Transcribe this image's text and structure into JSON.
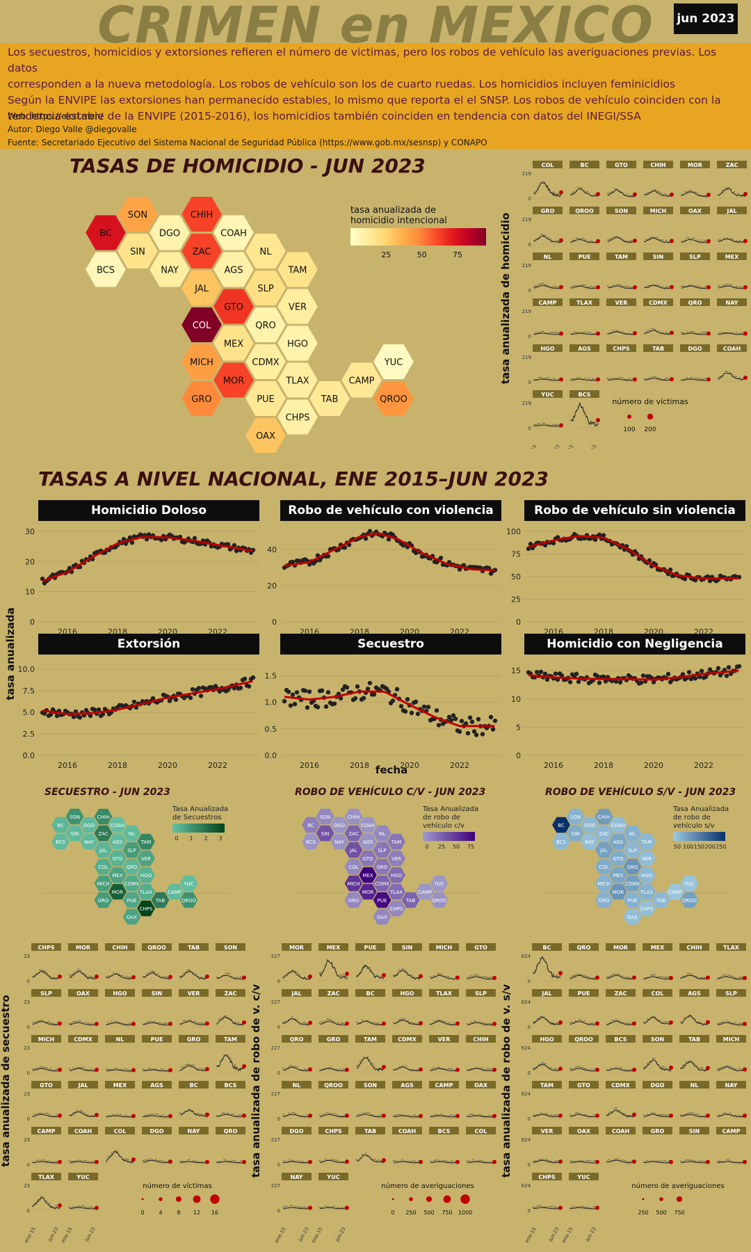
{
  "header": {
    "title": "CRIMEN en MEXICO",
    "date": "jun 2023"
  },
  "description": {
    "lines": [
      "Los secuestros, homicidios y extorsiones refieren el número de victimas, pero los robos de vehículo las averiguaciones previas. Los datos",
      "corresponden a la nueva metodología. Los robos de vehículo son los de cuarto ruedas. Los homicidios incluyen feminicidios",
      "Según la ENVIPE las extorsiones han permanecido estables, lo mismo que reporta el el SNSP. Los robos de vehículo coinciden con la",
      "tendencia estable de la ENVIPE (2015-2016), los homicidios también coinciden en tendencia con datos del INEGI/SSA"
    ],
    "web": "Web: https://elcri.men/",
    "author": "Autor: Diego Valle @diegovalle",
    "source": "Fuente: Secretariado Ejecutivo del Sistema Nacional de Seguridad Pública (https://www.gob.mx/sesnsp) y CONAPO"
  },
  "colors": {
    "gold": "#c8b36d",
    "orange_band": "#e8a521",
    "trend": "#c00000",
    "dark": "#0d0d0d"
  },
  "hexmap_layout": [
    {
      "s": "SON",
      "c": 1,
      "r": 0
    },
    {
      "s": "CHIH",
      "c": 3,
      "r": 0
    },
    {
      "s": "BC",
      "c": 0,
      "r": 1
    },
    {
      "s": "DGO",
      "c": 2,
      "r": 1
    },
    {
      "s": "COAH",
      "c": 4,
      "r": 1
    },
    {
      "s": "SIN",
      "c": 1,
      "r": 2
    },
    {
      "s": "ZAC",
      "c": 3,
      "r": 2
    },
    {
      "s": "NL",
      "c": 5,
      "r": 2
    },
    {
      "s": "BCS",
      "c": 0,
      "r": 3
    },
    {
      "s": "NAY",
      "c": 2,
      "r": 3
    },
    {
      "s": "AGS",
      "c": 4,
      "r": 3
    },
    {
      "s": "TAM",
      "c": 6,
      "r": 3
    },
    {
      "s": "JAL",
      "c": 3,
      "r": 4
    },
    {
      "s": "SLP",
      "c": 5,
      "r": 4
    },
    {
      "s": "GTO",
      "c": 4,
      "r": 5
    },
    {
      "s": "VER",
      "c": 6,
      "r": 5
    },
    {
      "s": "COL",
      "c": 3,
      "r": 6
    },
    {
      "s": "QRO",
      "c": 5,
      "r": 6
    },
    {
      "s": "MEX",
      "c": 4,
      "r": 7
    },
    {
      "s": "HGO",
      "c": 6,
      "r": 7
    },
    {
      "s": "MICH",
      "c": 3,
      "r": 8
    },
    {
      "s": "CDMX",
      "c": 5,
      "r": 8
    },
    {
      "s": "YUC",
      "c": 9,
      "r": 8
    },
    {
      "s": "MOR",
      "c": 4,
      "r": 9
    },
    {
      "s": "TLAX",
      "c": 6,
      "r": 9
    },
    {
      "s": "CAMP",
      "c": 8,
      "r": 9
    },
    {
      "s": "GRO",
      "c": 3,
      "r": 10
    },
    {
      "s": "PUE",
      "c": 5,
      "r": 10
    },
    {
      "s": "TAB",
      "c": 7,
      "r": 10
    },
    {
      "s": "QROO",
      "c": 9,
      "r": 10
    },
    {
      "s": "CHPS",
      "c": 6,
      "r": 11
    },
    {
      "s": "OAX",
      "c": 5,
      "r": 12
    }
  ],
  "homicide_map": {
    "title": "TASAS DE HOMICIDIO - JUN 2023",
    "legend_title_1": "tasa anualizada de",
    "legend_title_2": "homicidio intencional",
    "legend_ticks": [
      25,
      50,
      75
    ],
    "legend_range": [
      0,
      95
    ],
    "values": {
      "SON": 40,
      "CHIH": 62,
      "BC": 75,
      "DGO": 8,
      "COAH": 6,
      "SIN": 18,
      "ZAC": 62,
      "NL": 16,
      "BCS": 5,
      "NAY": 12,
      "AGS": 10,
      "TAM": 18,
      "JAL": 30,
      "SLP": 20,
      "GTO": 65,
      "VER": 12,
      "COL": 95,
      "QRO": 8,
      "MEX": 18,
      "HGO": 8,
      "MICH": 42,
      "CDMX": 12,
      "YUC": 3,
      "MOR": 62,
      "TLAX": 12,
      "CAMP": 15,
      "GRO": 48,
      "PUE": 15,
      "TAB": 14,
      "QROO": 45,
      "CHPS": 10,
      "OAX": 30
    }
  },
  "homicide_small": {
    "ylabel": "tasa anualizada de homicidio",
    "ymax_label": "219",
    "zero_label": "0",
    "states": [
      "COL",
      "BC",
      "GTO",
      "CHIH",
      "MOR",
      "ZAC",
      "GRO",
      "QROO",
      "SON",
      "MICH",
      "OAX",
      "JAL",
      "NL",
      "PUE",
      "TAM",
      "SIN",
      "SLP",
      "MEX",
      "CAMP",
      "TLAX",
      "VER",
      "CDMX",
      "QRO",
      "NAY",
      "HGO",
      "AGS",
      "CHPS",
      "TAB",
      "DGO",
      "COAH",
      "YUC",
      "BCS"
    ],
    "x_ticks": [
      "ene-15",
      "jun-23"
    ],
    "size_legend_title": "número de víctimas",
    "size_legend": [
      100,
      200
    ]
  },
  "national": {
    "title": "TASAS A NIVEL NACIONAL, ENE 2015–JUN 2023",
    "ylabel": "tasa anualizada",
    "xlabel": "fecha",
    "x_ticks": [
      "2016",
      "2018",
      "2020",
      "2022"
    ]
  },
  "chart_data": [
    {
      "type": "scatter",
      "title": "Homicidio Doloso",
      "x_range": [
        2015,
        2023.5
      ],
      "ylim": [
        0,
        30
      ],
      "y_ticks": [
        "0",
        "10",
        "20",
        "30"
      ],
      "trend": [
        [
          2015,
          13.5
        ],
        [
          2016,
          16.5
        ],
        [
          2017,
          21.5
        ],
        [
          2018,
          26
        ],
        [
          2019,
          28.2
        ],
        [
          2020,
          28
        ],
        [
          2021,
          27
        ],
        [
          2022,
          25.5
        ],
        [
          2023.4,
          23.5
        ]
      ],
      "noise": 1.0
    },
    {
      "type": "scatter",
      "title": "Robo de vehículo con violencia",
      "x_range": [
        2015,
        2023.5
      ],
      "ylim": [
        0,
        50
      ],
      "y_ticks": [
        "0",
        "20",
        "40"
      ],
      "trend": [
        [
          2015,
          31
        ],
        [
          2016,
          33
        ],
        [
          2017,
          40
        ],
        [
          2018,
          47
        ],
        [
          2018.7,
          49
        ],
        [
          2019.5,
          46
        ],
        [
          2020.5,
          38
        ],
        [
          2021.5,
          32
        ],
        [
          2022.5,
          29
        ],
        [
          2023.4,
          28.5
        ]
      ],
      "noise": 2.0
    },
    {
      "type": "scatter",
      "title": "Robo de vehículo sin violencia",
      "x_range": [
        2015,
        2023.5
      ],
      "ylim": [
        0,
        100
      ],
      "y_ticks": [
        "0",
        "25",
        "50",
        "75",
        "100"
      ],
      "trend": [
        [
          2015,
          83
        ],
        [
          2016,
          90
        ],
        [
          2017,
          95
        ],
        [
          2018,
          93
        ],
        [
          2019,
          80
        ],
        [
          2020,
          62
        ],
        [
          2021,
          51
        ],
        [
          2022,
          48
        ],
        [
          2023.4,
          48
        ]
      ],
      "noise": 3.0
    },
    {
      "type": "scatter",
      "title": "Extorsión",
      "x_range": [
        2015,
        2023.5
      ],
      "ylim": [
        0,
        10.5
      ],
      "y_ticks": [
        "0.0",
        "2.5",
        "5.0",
        "7.5",
        "10.0"
      ],
      "trend": [
        [
          2015,
          5.2
        ],
        [
          2016,
          4.8
        ],
        [
          2017,
          4.9
        ],
        [
          2018,
          5.3
        ],
        [
          2019,
          6
        ],
        [
          2020,
          6.7
        ],
        [
          2021,
          7.2
        ],
        [
          2022,
          7.7
        ],
        [
          2023.4,
          8.6
        ]
      ],
      "noise": 0.5
    },
    {
      "type": "scatter",
      "title": "Secuestro",
      "x_range": [
        2015,
        2023.5
      ],
      "ylim": [
        0,
        1.7
      ],
      "y_ticks": [
        "0.0",
        "0.5",
        "1.0",
        "1.5"
      ],
      "trend": [
        [
          2015,
          1.1
        ],
        [
          2016,
          1.05
        ],
        [
          2017,
          1.1
        ],
        [
          2018,
          1.2
        ],
        [
          2019,
          1.2
        ],
        [
          2020,
          0.95
        ],
        [
          2021,
          0.72
        ],
        [
          2022,
          0.55
        ],
        [
          2023.4,
          0.55
        ]
      ],
      "noise": 0.17
    },
    {
      "type": "scatter",
      "title": "Homicidio con Negligencia",
      "x_range": [
        2015,
        2023.5
      ],
      "ylim": [
        0,
        16
      ],
      "y_ticks": [
        "0",
        "5",
        "10",
        "15"
      ],
      "trend": [
        [
          2015,
          14.2
        ],
        [
          2016,
          13.8
        ],
        [
          2017,
          13.6
        ],
        [
          2018,
          13.5
        ],
        [
          2019,
          13.5
        ],
        [
          2020,
          13.4
        ],
        [
          2021,
          13.8
        ],
        [
          2022,
          14.4
        ],
        [
          2023.4,
          15
        ]
      ],
      "noise": 0.8
    }
  ],
  "mini_maps": [
    {
      "title": "SECUESTRO - JUN 2023",
      "legend_1": "Tasa Anualizada",
      "legend_2": "de Secuestros",
      "legend_3": "",
      "ticks": [
        "0",
        "1",
        "2",
        "3"
      ],
      "c0": "#66c2a4",
      "c1": "#00441b",
      "range": [
        0,
        3.2
      ],
      "values": {
        "SON": 1.2,
        "CHIH": 1.4,
        "BC": 0.3,
        "DGO": 0.2,
        "COAH": 0.1,
        "SIN": 0.2,
        "ZAC": 1.8,
        "NL": 0.2,
        "BCS": 0.2,
        "NAY": 0.2,
        "AGS": 0.2,
        "TAM": 1.5,
        "JAL": 0.3,
        "SLP": 1.0,
        "GTO": 0.4,
        "VER": 0.8,
        "COL": 0.5,
        "QRO": 0.3,
        "MEX": 0.8,
        "HGO": 0.4,
        "MICH": 0.9,
        "CDMX": 0.6,
        "YUC": 0.1,
        "MOR": 2.5,
        "TLAX": 0.5,
        "CAMP": 0.2,
        "GRO": 1.0,
        "PUE": 0.7,
        "TAB": 1.8,
        "QROO": 1.2,
        "CHPS": 3.2,
        "OAX": 0.8
      }
    },
    {
      "title": "ROBO DE VEHÍCULO C/V - JUN 2023",
      "legend_1": "Tasa Anualizada",
      "legend_2": "de robo de",
      "legend_3": "vehículo c/v",
      "ticks": [
        "0",
        "25",
        "50",
        "75"
      ],
      "c0": "#9e9ac8",
      "c1": "#3f007d",
      "range": [
        0,
        85
      ],
      "values": {
        "SON": 10,
        "CHIH": 5,
        "BC": 15,
        "DGO": 3,
        "COAH": 3,
        "SIN": 40,
        "ZAC": 30,
        "NL": 10,
        "BCS": 3,
        "NAY": 5,
        "AGS": 5,
        "TAM": 20,
        "JAL": 40,
        "SLP": 20,
        "GTO": 20,
        "VER": 15,
        "COL": 10,
        "QRO": 20,
        "MEX": 85,
        "HGO": 25,
        "MICH": 55,
        "CDMX": 30,
        "YUC": 1,
        "MOR": 65,
        "TLAX": 25,
        "CAMP": 2,
        "GRO": 10,
        "PUE": 80,
        "TAB": 30,
        "QROO": 5,
        "CHPS": 10,
        "OAX": 10
      }
    },
    {
      "title": "ROBO DE VEHÍCULO S/V - JUN 2023",
      "legend_1": "Tasa Anualizada",
      "legend_2": "de robo de",
      "legend_3": "vehículo s/v",
      "ticks": [
        "50",
        "100",
        "150",
        "200",
        "250"
      ],
      "c0": "#9ecae1",
      "c1": "#08306b",
      "range": [
        0,
        260
      ],
      "values": {
        "SON": 40,
        "CHIH": 80,
        "BC": 260,
        "DGO": 30,
        "COAH": 20,
        "SIN": 50,
        "ZAC": 30,
        "NL": 40,
        "BCS": 30,
        "NAY": 20,
        "AGS": 60,
        "TAM": 30,
        "JAL": 70,
        "SLP": 30,
        "GTO": 50,
        "VER": 20,
        "COL": 50,
        "QRO": 90,
        "MEX": 60,
        "HGO": 30,
        "MICH": 40,
        "CDMX": 70,
        "YUC": 10,
        "MOR": 90,
        "TLAX": 40,
        "CAMP": 10,
        "GRO": 40,
        "PUE": 40,
        "TAB": 30,
        "QROO": 70,
        "CHPS": 20,
        "OAX": 20
      }
    }
  ],
  "small_multiples": [
    {
      "ylabel": "tasa anualizada de secuestro",
      "ymax_label": "23",
      "zero_label": "0",
      "states": [
        "CHPS",
        "MOR",
        "CHIH",
        "QROO",
        "TAB",
        "SON",
        "SLP",
        "OAX",
        "HGO",
        "SIN",
        "VER",
        "ZAC",
        "MICH",
        "CDMX",
        "NL",
        "PUE",
        "GRO",
        "TAM",
        "GTO",
        "JAL",
        "MEX",
        "AGS",
        "BC",
        "BCS",
        "CAMP",
        "COAH",
        "COL",
        "DGO",
        "NAY",
        "QRO",
        "TLAX",
        "YUC"
      ],
      "x_ticks": [
        "ene-15",
        "jun-23"
      ],
      "size_title": "número de víctimas",
      "size_legend": [
        "0",
        "4",
        "8",
        "12",
        "16"
      ]
    },
    {
      "ylabel": "tasa anualizada de robo de v. c/v",
      "ymax_label": "227",
      "zero_label": "0",
      "states": [
        "MOR",
        "MEX",
        "PUE",
        "SIN",
        "MICH",
        "GTO",
        "JAL",
        "ZAC",
        "BC",
        "HGO",
        "TLAX",
        "SLP",
        "QRO",
        "GRO",
        "TAM",
        "CDMX",
        "VER",
        "CHIH",
        "NL",
        "QROO",
        "SON",
        "AGS",
        "CAMP",
        "OAX",
        "DGO",
        "CHPS",
        "TAB",
        "COAH",
        "BCS",
        "COL",
        "NAY",
        "YUC"
      ],
      "x_ticks": [
        "ene-15",
        "jun-23"
      ],
      "size_title": "número de averiguaciones",
      "size_legend": [
        "0",
        "250",
        "500",
        "750",
        "1000"
      ]
    },
    {
      "ylabel": "tasa anualizada de robo de v. s/v",
      "ymax_label": "624",
      "zero_label": "0",
      "states": [
        "BC",
        "QRO",
        "MOR",
        "MEX",
        "CHIH",
        "TLAX",
        "JAL",
        "PUE",
        "ZAC",
        "COL",
        "AGS",
        "SLP",
        "HGO",
        "QROO",
        "BCS",
        "SON",
        "TAB",
        "MICH",
        "TAM",
        "GTO",
        "CDMX",
        "DGO",
        "NL",
        "NAY",
        "VER",
        "OAX",
        "COAH",
        "GRO",
        "SIN",
        "CAMP",
        "CHPS",
        "YUC"
      ],
      "x_ticks": [
        "ene-15",
        "jun-23"
      ],
      "size_title": "número de averiguaciones",
      "size_legend": [
        "250",
        "500",
        "750"
      ]
    }
  ]
}
